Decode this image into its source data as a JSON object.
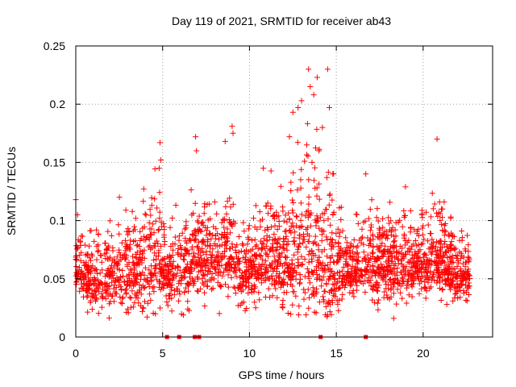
{
  "chart_data": {
    "type": "scatter",
    "title": "Day 119 of 2021, SRMTID for receiver ab43",
    "xlabel": "GPS time / hours",
    "ylabel": "SRMTID / TECUs",
    "xlim": [
      0,
      24
    ],
    "ylim": [
      0,
      0.25
    ],
    "xticks": [
      0,
      5,
      10,
      15,
      20
    ],
    "xtick_labels": [
      "0",
      "5",
      "10",
      "15",
      "20"
    ],
    "yticks": [
      0,
      0.05,
      0.1,
      0.15,
      0.2,
      0.25
    ],
    "ytick_labels": [
      "0",
      "0.05",
      "0.1",
      "0.15",
      "0.2",
      "0.25"
    ],
    "grid": true,
    "marker": "+",
    "series": [
      {
        "name": "SRMTID",
        "color": "#ff0000",
        "x_range": [
          0,
          22.7
        ],
        "n_points": 2600,
        "baseline_profile": [
          [
            0,
            0.058
          ],
          [
            1,
            0.05
          ],
          [
            2,
            0.052
          ],
          [
            3,
            0.055
          ],
          [
            4,
            0.057
          ],
          [
            4.8,
            0.065
          ],
          [
            5.3,
            0.052
          ],
          [
            6,
            0.055
          ],
          [
            7,
            0.068
          ],
          [
            8,
            0.07
          ],
          [
            9,
            0.068
          ],
          [
            9.5,
            0.05
          ],
          [
            10,
            0.058
          ],
          [
            11,
            0.068
          ],
          [
            12,
            0.065
          ],
          [
            13,
            0.072
          ],
          [
            14,
            0.07
          ],
          [
            15,
            0.06
          ],
          [
            16,
            0.058
          ],
          [
            17,
            0.062
          ],
          [
            18,
            0.06
          ],
          [
            19,
            0.058
          ],
          [
            20,
            0.065
          ],
          [
            21,
            0.068
          ],
          [
            22,
            0.052
          ],
          [
            22.7,
            0.055
          ]
        ],
        "spread_profile": [
          [
            0,
            0.015
          ],
          [
            4.8,
            0.03
          ],
          [
            5.3,
            0.018
          ],
          [
            7,
            0.025
          ],
          [
            9,
            0.025
          ],
          [
            10,
            0.02
          ],
          [
            12,
            0.03
          ],
          [
            13.5,
            0.045
          ],
          [
            14.5,
            0.04
          ],
          [
            15.5,
            0.02
          ],
          [
            17,
            0.022
          ],
          [
            20,
            0.022
          ],
          [
            21,
            0.025
          ],
          [
            22.7,
            0.018
          ]
        ],
        "notable_points": [
          {
            "x": 0.0,
            "y": 0.118
          },
          {
            "x": 0.1,
            "y": 0.105
          },
          {
            "x": 4.85,
            "y": 0.167
          },
          {
            "x": 4.9,
            "y": 0.152
          },
          {
            "x": 4.8,
            "y": 0.145
          },
          {
            "x": 6.9,
            "y": 0.172
          },
          {
            "x": 6.95,
            "y": 0.16
          },
          {
            "x": 8.6,
            "y": 0.168
          },
          {
            "x": 9.0,
            "y": 0.181
          },
          {
            "x": 9.05,
            "y": 0.175
          },
          {
            "x": 10.8,
            "y": 0.145
          },
          {
            "x": 12.5,
            "y": 0.193
          },
          {
            "x": 12.8,
            "y": 0.197
          },
          {
            "x": 13.0,
            "y": 0.203
          },
          {
            "x": 13.4,
            "y": 0.23
          },
          {
            "x": 13.5,
            "y": 0.215
          },
          {
            "x": 13.7,
            "y": 0.208
          },
          {
            "x": 13.9,
            "y": 0.223
          },
          {
            "x": 14.5,
            "y": 0.23
          },
          {
            "x": 14.6,
            "y": 0.197
          },
          {
            "x": 14.2,
            "y": 0.18
          },
          {
            "x": 13.3,
            "y": 0.165
          },
          {
            "x": 12.3,
            "y": 0.172
          },
          {
            "x": 13.6,
            "y": 0.15
          },
          {
            "x": 14.0,
            "y": 0.16
          },
          {
            "x": 14.8,
            "y": 0.14
          },
          {
            "x": 16.7,
            "y": 0.14
          },
          {
            "x": 20.8,
            "y": 0.17
          }
        ],
        "zero_points": [
          5.25,
          5.95,
          6.85,
          7.1,
          14.1,
          16.7
        ]
      }
    ]
  }
}
